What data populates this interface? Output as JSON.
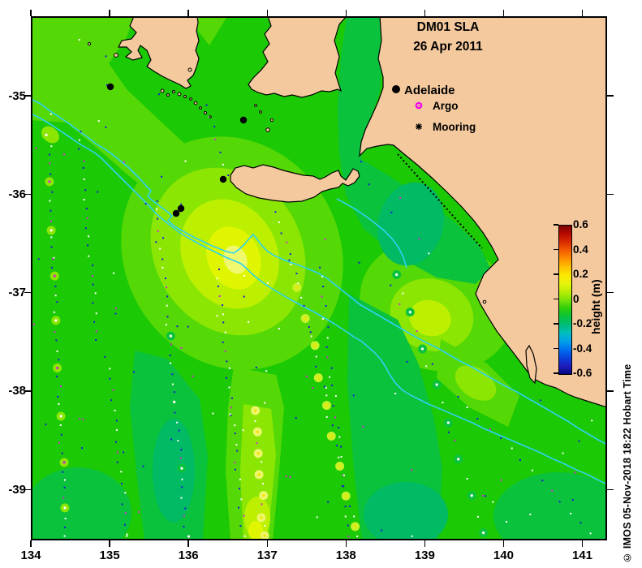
{
  "title": {
    "line1": "DM01 SLA",
    "line2": "26 Apr 2011"
  },
  "legend": {
    "city": "Adelaide",
    "argo": "Argo",
    "mooring": "Mooring"
  },
  "watermark": "© IMOS 05-Nov-2018 18:22 Hobart Time",
  "axes": {
    "x_ticks": [
      "134",
      "135",
      "136",
      "137",
      "138",
      "139",
      "140",
      "141"
    ],
    "y_ticks": [
      "-35",
      "-36",
      "-37",
      "-38",
      "-39"
    ]
  },
  "colorbar": {
    "label": "height (m)",
    "ticks": [
      "0.6",
      "0.4",
      "0.2",
      "0",
      "-0.2",
      "-0.4",
      "-0.6"
    ],
    "gradient": [
      "#7A0403",
      "#B80A00",
      "#D92B00",
      "#F25C00",
      "#FC8D00",
      "#FFC100",
      "#FCE803",
      "#E9F30B",
      "#BBED05",
      "#7CE30A",
      "#2FCF08",
      "#0AC23B",
      "#00BC76",
      "#00BEBE",
      "#00A2E8",
      "#0072F2",
      "#0742DC",
      "#1F1EC0",
      "#050580"
    ]
  },
  "palette": {
    "land": "#F5C99E",
    "coast": "#000000",
    "sea_base": "#1CC905",
    "L1": "#55D906",
    "L2": "#8CE603",
    "L3": "#BCF000",
    "L4": "#E0F600",
    "L5": "#F0F86E",
    "D1": "#0AC23B",
    "D2": "#00BA64",
    "contour": "#2ED3F2",
    "dot_navy": "#1A1AD8",
    "dot_white": "#FFFFFF",
    "dot_magenta": "#D428D4",
    "argo": "#F000F0"
  },
  "map": {
    "blobs": [
      {
        "t": "p",
        "c": "L1",
        "v": "0,0 127,0 118,26 96,58 118,90 156,126 196,163 232,203 256,238 238,262 204,256 164,231 120,196 80,161 44,131 0,128"
      },
      {
        "t": "e",
        "c": "L1",
        "v": [
          248,
          292,
          132,
          148,
          -32
        ]
      },
      {
        "t": "e",
        "c": "L2",
        "v": [
          243,
          290,
          90,
          108,
          -32
        ]
      },
      {
        "t": "e",
        "c": "L3",
        "v": [
          245,
          293,
          58,
          70,
          -28
        ]
      },
      {
        "t": "e",
        "c": "L4",
        "v": [
          250,
          298,
          32,
          40,
          -25
        ]
      },
      {
        "t": "e",
        "c": "L5",
        "v": [
          252,
          300,
          14,
          18,
          -25
        ]
      },
      {
        "t": "e",
        "c": "L1",
        "v": [
          500,
          356,
          96,
          80,
          18
        ]
      },
      {
        "t": "e",
        "c": "L2",
        "v": [
          494,
          368,
          52,
          44,
          18
        ]
      },
      {
        "t": "e",
        "c": "L3",
        "v": [
          492,
          372,
          26,
          22,
          18
        ]
      },
      {
        "t": "p",
        "c": "L1",
        "v": "250,432 302,442 312,482 306,560 298,646 246,646 240,560 243,482"
      },
      {
        "t": "p",
        "c": "L2",
        "v": "262,478 296,484 302,540 292,646 262,646 258,560"
      },
      {
        "t": "e",
        "c": "L3",
        "v": [
          279,
          618,
          16,
          26,
          0
        ]
      },
      {
        "t": "e",
        "c": "L4",
        "v": [
          277,
          634,
          9,
          12,
          0
        ]
      },
      {
        "t": "p",
        "c": "L1",
        "v": "505,398 562,428 602,468 588,506 540,482 500,446"
      },
      {
        "t": "e",
        "c": "L2",
        "v": [
          548,
          452,
          28,
          18,
          35
        ]
      },
      {
        "t": "p",
        "c": "L1",
        "v": "205,0 242,0 220,36 206,18"
      },
      {
        "t": "e",
        "c": "L2",
        "v": [
          24,
          146,
          12,
          9,
          40
        ]
      },
      {
        "t": "p",
        "c": "D1",
        "v": "389,0 430,0 432,60 430,92 424,110 415,135 409,160 407,176 440,196 480,222 520,252 552,282 566,310 548,330 500,322 452,296 410,262 388,220 380,170 378,110 382,50"
      },
      {
        "t": "e",
        "c": "D2",
        "v": [
          468,
          256,
          40,
          52,
          15
        ]
      },
      {
        "t": "p",
        "c": "D1",
        "v": "392,342 452,374 477,427 497,497 507,557 502,646 408,646 398,560 390,452"
      },
      {
        "t": "e",
        "c": "D2",
        "v": [
          462,
          614,
          52,
          40,
          0
        ]
      },
      {
        "t": "p",
        "c": "D1",
        "v": "128,412 168,422 208,472 218,542 212,646 140,646 130,562 122,482"
      },
      {
        "t": "e",
        "c": "D2",
        "v": [
          176,
          560,
          26,
          64,
          0
        ]
      },
      {
        "t": "e",
        "c": "D1",
        "v": [
          58,
          612,
          66,
          56,
          0
        ]
      },
      {
        "t": "e",
        "c": "D1",
        "v": [
          650,
          616,
          80,
          54,
          0
        ]
      }
    ],
    "contours": [
      "0,102 12,108 24,117 36,125 48,133 60,142 70,149 80,157 90,163 100,170 110,178 120,186 128,194 136,202 142,209 148,215 144,222 151,228 159,234 167,240 174,246 169,252 176,258 184,263 193,268 202,273 211,277 221,282 231,286 241,290 250,292 257,287 264,280 269,274 274,269 279,275 285,283 292,290 300,295 309,299 319,303 331,307 343,312 355,317 365,323 375,331 385,339 395,347 405,355 417,362 429,369 441,376 453,383 465,390 477,397 491,404 503,410 515,417 527,424 541,431 555,439 569,447 583,455 597,462 611,470 625,478 639,486 651,493 663,500 675,508 687,515 699,522 710,528",
      "0,120 12,126 24,133 36,141 48,149 58,156 68,162 78,168 86,174 94,182 102,190 110,198 118,206 126,214 134,222 141,229 148,236 154,243 161,249 168,255 176,261 184,267 192,272 201,277 210,282 220,287 230,292 240,297 250,301 259,305 266,311 272,317 279,323 287,329 296,335 306,341 316,347 327,353 338,359 350,365 362,372 374,379 386,387 398,395 408,401 416,408 424,415 431,423 437,432 443,443 450,453 458,461 468,467 478,472 490,478 502,483 516,489 530,495 544,501 558,508 572,514 586,520 600,526 614,532 628,538 642,545 656,551 670,558 684,564 698,571 710,577",
      "377,225 388,231 400,238 412,246 424,255 435,264 445,274 453,285 459,297 463,310"
    ],
    "tracks": [
      {
        "f": [
          22,
          148
        ],
        "t": [
          42,
          640
        ],
        "n": 44,
        "ring": {
          "c": "L2",
          "centers": [
            "#FFFFFF",
            "#D428D4"
          ],
          "every": 5
        }
      },
      {
        "f": [
          60,
          142
        ],
        "t": [
          82,
          400
        ],
        "n": 23
      },
      {
        "f": [
          156,
          228
        ],
        "t": [
          192,
          640
        ],
        "n": 36,
        "ring": {
          "c": "D1",
          "centers": [
            "#FFFFFF"
          ],
          "every": 7,
          "rs": 12
        }
      },
      {
        "f": [
          230,
          310
        ],
        "t": [
          262,
          640
        ],
        "n": 30
      },
      {
        "f": [
          278,
          486
        ],
        "t": [
          288,
          642
        ],
        "n": 13,
        "ring": {
          "c": "#EDF66A",
          "centers": [
            "#F0E400",
            "#D428D4"
          ],
          "every": 2
        }
      },
      {
        "f": [
          356,
          310
        ],
        "t": [
          392,
          640
        ],
        "n": 28
      },
      {
        "f": [
          330,
          334
        ],
        "t": [
          402,
          640
        ],
        "n": 26,
        "ring": {
          "c": "#C8F128",
          "centers": [
            "#F0E400",
            "#D428D4",
            "#FFFFFF"
          ],
          "every": 3
        }
      },
      {
        "f": [
          450,
          318
        ],
        "t": [
          560,
          638
        ],
        "n": 15,
        "ring": {
          "c": "D1",
          "centers": [
            "#FFFFFF",
            "#D428D4"
          ],
          "every": 2
        }
      },
      {
        "f": [
          528,
          468
        ],
        "t": [
          692,
          638
        ],
        "n": 14
      },
      {
        "f": [
          214,
          108
        ],
        "t": [
          254,
          228
        ],
        "n": 9
      },
      {
        "f": [
          94,
          420
        ],
        "t": [
          120,
          640
        ],
        "n": 18
      },
      {
        "f": [
          300,
          240
        ],
        "t": [
          330,
          330
        ],
        "n": 8
      }
    ],
    "moorings": [
      [
        98,
        87
      ],
      [
        262,
        128
      ],
      [
        237,
        201
      ],
      [
        179,
        243
      ],
      [
        185,
        237
      ]
    ],
    "islands": [
      [
        105,
        48,
        2.4
      ],
      [
        72,
        34,
        1.6
      ],
      [
        162,
        92,
        2
      ],
      [
        169,
        97,
        1.5
      ],
      [
        176,
        93,
        1.5
      ],
      [
        183,
        96,
        1.9
      ],
      [
        190,
        99,
        1.5
      ],
      [
        197,
        102,
        1.4
      ],
      [
        203,
        107,
        1.8
      ],
      [
        209,
        113,
        1.4
      ],
      [
        215,
        119,
        1.6
      ],
      [
        221,
        124,
        1.3
      ],
      [
        196,
        66,
        2
      ],
      [
        292,
        140,
        2.3
      ],
      [
        297,
        128,
        1.6
      ],
      [
        277,
        110,
        1.4
      ],
      [
        283,
        118,
        1.4
      ],
      [
        559,
        352,
        1.8
      ]
    ],
    "random_dots": {
      "count": 135,
      "seed": 7
    }
  },
  "chart_data": {
    "type": "heatmap",
    "title": "DM01 SLA",
    "subtitle": "26 Apr 2011",
    "x_axis": {
      "ticks": [
        134,
        135,
        136,
        137,
        138,
        139,
        140,
        141
      ],
      "range": [
        134,
        141.3
      ]
    },
    "y_axis": {
      "ticks": [
        -35,
        -36,
        -37,
        -38,
        -39
      ],
      "range": [
        -39.5,
        -34.2
      ]
    },
    "colorbar": {
      "label": "height (m)",
      "range": [
        -0.6,
        0.6
      ],
      "ticks": [
        0.6,
        0.4,
        0.2,
        0,
        -0.2,
        -0.4,
        -0.6
      ]
    },
    "field_summary": [
      {
        "lon": 136.45,
        "lat": -36.6,
        "sla_m": 0.22,
        "desc": "local SLA high"
      },
      {
        "lon": 139.1,
        "lat": -37.35,
        "sla_m": 0.18,
        "desc": "local SLA high near coast"
      },
      {
        "lon": 136.9,
        "lat": -39.0,
        "sla_m": 0.12,
        "desc": "narrow high band"
      },
      {
        "lon": 138.8,
        "lat": -36.3,
        "sla_m": -0.02,
        "desc": "weak low between Kangaroo Is and Coorong"
      },
      {
        "lon": 138.5,
        "lat": -39.3,
        "sla_m": -0.03,
        "desc": "weak low"
      },
      {
        "lon": 135.8,
        "lat": -38.9,
        "sla_m": -0.02,
        "desc": "weak low band"
      },
      {
        "lon": 0,
        "lat": 0,
        "sla_m": 0.05,
        "desc": "background field ~0 to 0.1 m (green)"
      }
    ],
    "contour_note": "two cyan contour lines run NW-SE across the shelf",
    "markers": {
      "city": {
        "name": "Adelaide",
        "lon": 138.6,
        "lat": -34.93
      },
      "moorings_lonlat": [
        [
          135.0,
          -34.91
        ],
        [
          136.7,
          -35.25
        ],
        [
          136.44,
          -35.85
        ],
        [
          135.84,
          -36.2
        ],
        [
          135.9,
          -36.15
        ]
      ]
    }
  }
}
